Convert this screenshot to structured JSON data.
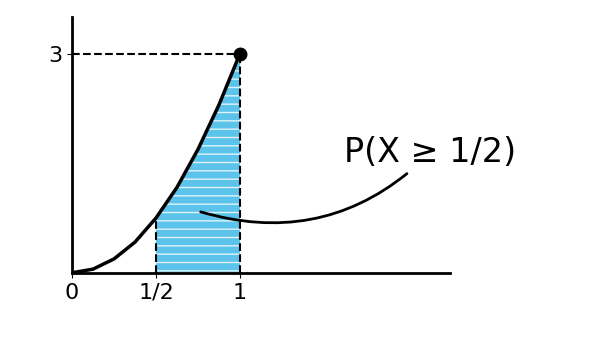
{
  "chart_data": {
    "type": "line",
    "x": [
      0,
      0.125,
      0.25,
      0.375,
      0.5,
      0.625,
      0.75,
      0.875,
      1
    ],
    "values": [
      0,
      0.05,
      0.19,
      0.42,
      0.75,
      1.17,
      1.69,
      2.3,
      3
    ],
    "color": "#000000",
    "shaded_range": [
      0.5,
      1
    ],
    "shade_color": "#33b5e5",
    "annotation": "P(X ≥ 1/2)",
    "xlim": [
      0,
      2.25
    ],
    "ylim": [
      0,
      3.5
    ],
    "xticks": [
      0,
      {
        "value": 0.5,
        "label": "1/2"
      },
      1
    ],
    "yticks": [
      3
    ],
    "grid": false
  }
}
